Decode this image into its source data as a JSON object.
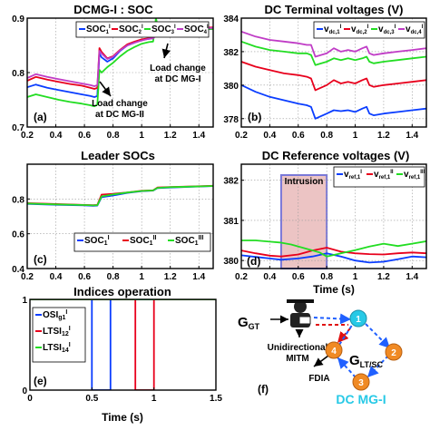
{
  "colors": {
    "blue": "#0a3dff",
    "red": "#e8001c",
    "green": "#22dd22",
    "magenta": "#c03cc6",
    "intrusion_fill": "#ecc4c4",
    "intrusion_edge": "#7a78d8",
    "node_orange": "#f08a24",
    "node_cyan": "#27c9e6",
    "arrow_blue": "#2060ff",
    "arrow_red": "#e01010"
  },
  "chart_data": [
    {
      "id": "a",
      "type": "line",
      "title": "DCMG-I : SOC",
      "panel_label": "(a)",
      "xlim": [
        0.2,
        1.5
      ],
      "ylim": [
        0.7,
        0.9
      ],
      "xticks": [
        0.2,
        0.4,
        0.6,
        0.8,
        1,
        1.2,
        1.4
      ],
      "xtick_labels": [
        "0.2",
        "0.4",
        "0.6",
        "0.8",
        "1",
        "1.2",
        "1.4"
      ],
      "yticks": [
        0.7,
        0.8,
        0.9
      ],
      "ytick_labels": [
        "0.7",
        "0.8",
        "0.9"
      ],
      "grid": true,
      "legend_placement": "top",
      "annotations": [
        {
          "text": "Load change",
          "x": 0.75,
          "y": 0.745
        },
        {
          "text": "at DC MG-II",
          "x": 0.75,
          "y": 0.733
        },
        {
          "text": "Load change",
          "x": 1.1,
          "y": 0.805
        },
        {
          "text": "at DC MG-I",
          "x": 1.1,
          "y": 0.792
        }
      ],
      "series": [
        {
          "name": "SOC1I",
          "label_main": "SOC",
          "label_sub": "1",
          "label_sup": "I",
          "color": "blue",
          "x": [
            0.2,
            0.26,
            0.34,
            0.42,
            0.5,
            0.58,
            0.64,
            0.67,
            0.69,
            0.705,
            0.72,
            0.76,
            0.8,
            0.85,
            0.9,
            0.95,
            1.0,
            1.05,
            1.08,
            1.1,
            1.12,
            1.2,
            1.3,
            1.4,
            1.5
          ],
          "y": [
            0.773,
            0.778,
            0.772,
            0.768,
            0.764,
            0.76,
            0.757,
            0.755,
            0.757,
            0.835,
            0.828,
            0.82,
            0.826,
            0.84,
            0.85,
            0.855,
            0.86,
            0.862,
            0.863,
            0.87,
            0.878,
            0.879,
            0.88,
            0.881,
            0.882
          ]
        },
        {
          "name": "SOC2I",
          "label_main": "SOC",
          "label_sub": "2",
          "label_sup": "I",
          "color": "red",
          "x": [
            0.2,
            0.26,
            0.34,
            0.42,
            0.5,
            0.58,
            0.64,
            0.67,
            0.69,
            0.705,
            0.72,
            0.76,
            0.8,
            0.85,
            0.9,
            0.95,
            1.0,
            1.05,
            1.08,
            1.1,
            1.12,
            1.2,
            1.3,
            1.4,
            1.5
          ],
          "y": [
            0.785,
            0.792,
            0.787,
            0.783,
            0.779,
            0.776,
            0.772,
            0.77,
            0.772,
            0.845,
            0.838,
            0.826,
            0.83,
            0.842,
            0.852,
            0.857,
            0.861,
            0.863,
            0.864,
            0.872,
            0.879,
            0.88,
            0.881,
            0.882,
            0.883
          ]
        },
        {
          "name": "SOC3I",
          "label_main": "SOC",
          "label_sub": "3",
          "label_sup": "I",
          "color": "green",
          "x": [
            0.2,
            0.26,
            0.34,
            0.42,
            0.5,
            0.58,
            0.64,
            0.67,
            0.69,
            0.705,
            0.72,
            0.76,
            0.8,
            0.85,
            0.9,
            0.95,
            1.0,
            1.05,
            1.08,
            1.1,
            1.12,
            1.2,
            1.3,
            1.4,
            1.5
          ],
          "y": [
            0.755,
            0.76,
            0.755,
            0.75,
            0.746,
            0.743,
            0.74,
            0.738,
            0.741,
            0.805,
            0.8,
            0.81,
            0.818,
            0.83,
            0.84,
            0.847,
            0.853,
            0.856,
            0.857,
            0.9,
            0.876,
            0.877,
            0.878,
            0.879,
            0.88
          ]
        },
        {
          "name": "SOC4I",
          "label_main": "SOC",
          "label_sub": "4",
          "label_sup": "I",
          "color": "magenta",
          "x": [
            0.2,
            0.26,
            0.34,
            0.42,
            0.5,
            0.58,
            0.64,
            0.67,
            0.69,
            0.705,
            0.72,
            0.76,
            0.8,
            0.85,
            0.9,
            0.95,
            1.0,
            1.05,
            1.08,
            1.1,
            1.12,
            1.2,
            1.3,
            1.4,
            1.5
          ],
          "y": [
            0.79,
            0.797,
            0.792,
            0.788,
            0.784,
            0.78,
            0.777,
            0.775,
            0.777,
            0.84,
            0.835,
            0.825,
            0.829,
            0.841,
            0.85,
            0.855,
            0.859,
            0.862,
            0.863,
            0.868,
            0.878,
            0.879,
            0.88,
            0.881,
            0.882
          ]
        }
      ]
    },
    {
      "id": "b",
      "type": "line",
      "title": "DC Terminal voltages (V)",
      "panel_label": "(b)",
      "xlim": [
        0.2,
        1.5
      ],
      "ylim": [
        377.5,
        384
      ],
      "xticks": [
        0.2,
        0.4,
        0.6,
        0.8,
        1,
        1.2,
        1.4
      ],
      "xtick_labels": [
        "0.2",
        "0.4",
        "0.6",
        "0.8",
        "1",
        "1.2",
        "1.4"
      ],
      "yticks": [
        378,
        380,
        382,
        384
      ],
      "ytick_labels": [
        "378",
        "380",
        "382",
        "384"
      ],
      "grid": true,
      "legend_placement": "top",
      "series": [
        {
          "name": "vIdc,1",
          "label_main": "v",
          "label_sub": "dc,1",
          "label_sup": "I",
          "color": "blue",
          "x": [
            0.2,
            0.3,
            0.4,
            0.5,
            0.6,
            0.66,
            0.69,
            0.72,
            0.8,
            0.85,
            0.9,
            0.95,
            1.0,
            1.05,
            1.08,
            1.1,
            1.13,
            1.2,
            1.3,
            1.4,
            1.5
          ],
          "y": [
            380.0,
            379.6,
            379.3,
            379.1,
            378.9,
            378.8,
            378.7,
            378.0,
            378.3,
            378.5,
            378.45,
            378.5,
            378.4,
            378.6,
            378.7,
            378.3,
            378.2,
            378.3,
            378.4,
            378.5,
            378.6
          ]
        },
        {
          "name": "vIdc,2",
          "label_main": "v",
          "label_sub": "dc,2",
          "label_sup": "I",
          "color": "red",
          "x": [
            0.2,
            0.3,
            0.4,
            0.5,
            0.6,
            0.66,
            0.69,
            0.72,
            0.8,
            0.85,
            0.9,
            0.95,
            1.0,
            1.05,
            1.08,
            1.1,
            1.13,
            1.2,
            1.3,
            1.4,
            1.5
          ],
          "y": [
            381.4,
            381.1,
            380.9,
            380.7,
            380.6,
            380.5,
            380.4,
            379.7,
            380.0,
            380.3,
            380.1,
            380.2,
            380.1,
            380.3,
            380.4,
            380.0,
            379.9,
            380.0,
            380.1,
            380.2,
            380.3
          ]
        },
        {
          "name": "vIdc,3",
          "label_main": "v",
          "label_sub": "dc,3",
          "label_sup": "I",
          "color": "green",
          "x": [
            0.2,
            0.3,
            0.4,
            0.5,
            0.6,
            0.66,
            0.69,
            0.72,
            0.8,
            0.85,
            0.9,
            0.95,
            1.0,
            1.05,
            1.08,
            1.1,
            1.13,
            1.2,
            1.3,
            1.4,
            1.5
          ],
          "y": [
            382.6,
            382.3,
            382.1,
            382.0,
            381.9,
            381.9,
            381.8,
            381.2,
            381.4,
            381.6,
            381.5,
            381.6,
            381.5,
            381.6,
            381.7,
            381.4,
            381.3,
            381.4,
            381.5,
            381.6,
            381.7
          ]
        },
        {
          "name": "vIdc,4",
          "label_main": "v",
          "label_sub": "dc,4",
          "label_sup": "I",
          "color": "magenta",
          "x": [
            0.2,
            0.3,
            0.4,
            0.5,
            0.6,
            0.66,
            0.69,
            0.72,
            0.8,
            0.85,
            0.9,
            0.95,
            1.0,
            1.05,
            1.08,
            1.1,
            1.13,
            1.2,
            1.3,
            1.4,
            1.5
          ],
          "y": [
            383.2,
            382.9,
            382.7,
            382.6,
            382.5,
            382.4,
            382.4,
            381.7,
            381.9,
            382.2,
            382.0,
            382.1,
            382.0,
            382.2,
            382.3,
            381.9,
            381.8,
            381.9,
            382.0,
            382.1,
            382.2
          ]
        }
      ]
    },
    {
      "id": "c",
      "type": "line",
      "title": "Leader SOCs",
      "panel_label": "(c)",
      "xlim": [
        0.2,
        1.5
      ],
      "ylim": [
        0.4,
        1.0
      ],
      "xticks": [
        0.2,
        0.4,
        0.6,
        0.8,
        1,
        1.2,
        1.4
      ],
      "xtick_labels": [
        "0.2",
        "0.4",
        "0.6",
        "0.8",
        "1",
        "1.2",
        "1.4"
      ],
      "yticks": [
        0.4,
        0.6,
        0.8
      ],
      "ytick_labels": [
        "0.4",
        "0.6",
        "0.8"
      ],
      "grid": true,
      "legend_placement": "bottom-right",
      "series": [
        {
          "name": "SOC1I",
          "label_main": "SOC",
          "label_sub": "1",
          "label_sup": "I",
          "color": "blue",
          "x": [
            0.2,
            0.4,
            0.6,
            0.66,
            0.69,
            0.72,
            0.8,
            0.9,
            1.0,
            1.08,
            1.11,
            1.2,
            1.35,
            1.5
          ],
          "y": [
            0.772,
            0.767,
            0.763,
            0.761,
            0.762,
            0.81,
            0.82,
            0.835,
            0.845,
            0.848,
            0.862,
            0.866,
            0.87,
            0.874
          ]
        },
        {
          "name": "SOC1II",
          "label_main": "SOC",
          "label_sub": "1",
          "label_sup": "II",
          "color": "red",
          "x": [
            0.2,
            0.4,
            0.6,
            0.66,
            0.69,
            0.72,
            0.8,
            0.9,
            1.0,
            1.08,
            1.11,
            1.2,
            1.35,
            1.5
          ],
          "y": [
            0.776,
            0.771,
            0.766,
            0.764,
            0.766,
            0.825,
            0.83,
            0.838,
            0.847,
            0.85,
            0.866,
            0.869,
            0.872,
            0.876
          ]
        },
        {
          "name": "SOC1III",
          "label_main": "SOC",
          "label_sub": "1",
          "label_sup": "III",
          "color": "green",
          "x": [
            0.2,
            0.4,
            0.6,
            0.66,
            0.69,
            0.72,
            0.8,
            0.9,
            1.0,
            1.08,
            1.11,
            1.2,
            1.35,
            1.5
          ],
          "y": [
            0.774,
            0.769,
            0.765,
            0.763,
            0.764,
            0.815,
            0.826,
            0.837,
            0.846,
            0.849,
            0.864,
            0.868,
            0.871,
            0.875
          ]
        }
      ]
    },
    {
      "id": "d",
      "type": "line",
      "title": "DC Reference voltages (V)",
      "panel_label": "(d)",
      "xlabel": "Time (s)",
      "xlim": [
        0.2,
        1.5
      ],
      "ylim": [
        379.8,
        382.4
      ],
      "xticks": [
        0.2,
        0.4,
        0.6,
        0.8,
        1,
        1.2,
        1.4
      ],
      "xtick_labels": [
        "0.2",
        "0.4",
        "0.6",
        "0.8",
        "1",
        "1.2",
        "1.4"
      ],
      "yticks": [
        380,
        381,
        382
      ],
      "ytick_labels": [
        "380",
        "381",
        "382"
      ],
      "grid": true,
      "legend_placement": "top-right",
      "intrusion": {
        "label": "Intrusion",
        "x_start": 0.48,
        "x_end": 0.8
      },
      "series": [
        {
          "name": "vIref,1",
          "label_main": "v",
          "label_sub": "ref,1",
          "label_sup": "I",
          "color": "blue",
          "x": [
            0.2,
            0.3,
            0.4,
            0.48,
            0.6,
            0.7,
            0.8,
            0.9,
            1.0,
            1.1,
            1.2,
            1.3,
            1.4,
            1.5
          ],
          "y": [
            380.13,
            380.09,
            380.05,
            380.02,
            380.05,
            380.1,
            380.18,
            380.1,
            380.0,
            379.95,
            379.97,
            380.03,
            380.1,
            380.08
          ]
        },
        {
          "name": "vIIref,1",
          "label_main": "v",
          "label_sub": "ref,1",
          "label_sup": "II",
          "color": "red",
          "x": [
            0.2,
            0.3,
            0.4,
            0.48,
            0.6,
            0.7,
            0.8,
            0.9,
            1.0,
            1.1,
            1.2,
            1.3,
            1.4,
            1.5
          ],
          "y": [
            380.25,
            380.18,
            380.12,
            380.1,
            380.15,
            380.25,
            380.32,
            380.22,
            380.18,
            380.16,
            380.15,
            380.18,
            380.2,
            380.18
          ]
        },
        {
          "name": "vIIIref,1",
          "label_main": "v",
          "label_sub": "ref,1",
          "label_sup": "III",
          "color": "green",
          "x": [
            0.2,
            0.3,
            0.4,
            0.47,
            0.55,
            0.65,
            0.75,
            0.8,
            0.9,
            1.0,
            1.1,
            1.2,
            1.3,
            1.4,
            1.5
          ],
          "y": [
            380.5,
            380.5,
            380.47,
            380.45,
            380.4,
            380.3,
            380.2,
            380.1,
            380.18,
            380.26,
            380.35,
            380.42,
            380.36,
            380.42,
            380.48
          ]
        }
      ]
    },
    {
      "id": "e",
      "type": "line",
      "title": "Indices operation",
      "panel_label": "(e)",
      "xlabel": "Time (s)",
      "xlim": [
        0,
        1.5
      ],
      "ylim": [
        0,
        1
      ],
      "xticks": [
        0,
        0.5,
        1,
        1.5
      ],
      "xtick_labels": [
        "0",
        "0.5",
        "1",
        "1.5"
      ],
      "yticks": [
        0,
        1
      ],
      "ytick_labels": [
        "0",
        "1"
      ],
      "grid": true,
      "legend_placement": "left",
      "series": [
        {
          "name": "OSIIg1",
          "label_main": "OSI",
          "label_sub": "g1",
          "label_sup": "I",
          "color": "blue",
          "x": [
            0,
            0.5,
            0.5,
            0.65,
            0.65,
            1.5
          ],
          "y": [
            1,
            1,
            0,
            0,
            1,
            1
          ]
        },
        {
          "name": "LTSII12",
          "label_main": "LTSI",
          "label_sub": "12",
          "label_sup": "I",
          "color": "red",
          "x": [
            0,
            0.85,
            0.85,
            1.0,
            1.0,
            1.5
          ],
          "y": [
            1,
            1,
            0,
            0,
            1,
            1
          ]
        },
        {
          "name": "LTSII14",
          "label_main": "LTSI",
          "label_sub": "14",
          "label_sup": "I",
          "color": "green",
          "x": [
            0,
            1.5
          ],
          "y": [
            1,
            1
          ]
        }
      ]
    }
  ],
  "diagram_f": {
    "panel_label": "(f)",
    "source_label": "G",
    "source_sub": "GT",
    "mitm_line1": "Unidirectional",
    "mitm_line2": "MITM",
    "fdia_label": "FDIA",
    "graph_label": "G",
    "graph_sub": "LT/SC",
    "microgrid_label": "DC MG-I",
    "nodes": [
      "1",
      "2",
      "3",
      "4"
    ]
  }
}
